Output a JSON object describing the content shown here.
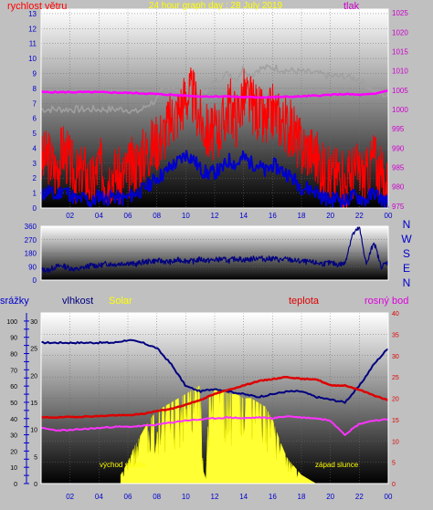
{
  "colors": {
    "background": "#c0c0c0",
    "wind": "#ff0000",
    "wind_avg": "#0000cc",
    "pressure": "#ff00ff",
    "pressure_text": "#cc00cc",
    "temperature_line": "#a0a0a0",
    "direction": "#000080",
    "humidity": "#000080",
    "solar": "#ffff33",
    "teplota": "#dd0000",
    "dew_point": "#ff33ff",
    "title": "#ffff00",
    "rain_axis": "#0000cc"
  },
  "chart_data": [
    {
      "type": "line",
      "title": "24 hour graph day : 28 July 2019",
      "ylabel_left": "rychlost větru",
      "ylabel_right": "tlak",
      "x_ticks": [
        "02",
        "04",
        "06",
        "08",
        "10",
        "12",
        "14",
        "16",
        "18",
        "20",
        "22",
        "00"
      ],
      "y_left_ticks": [
        0,
        1,
        2,
        3,
        4,
        5,
        6,
        7,
        8,
        9,
        10,
        11,
        12,
        13
      ],
      "y_right_ticks": [
        975,
        980,
        985,
        990,
        995,
        1000,
        1005,
        1010,
        1015,
        1020,
        1025
      ],
      "ylim_left": [
        0,
        13.3
      ],
      "ylim_right": [
        974.5,
        1026
      ],
      "series": [
        {
          "role": "wind_max",
          "x": [
            0,
            0.5,
            1,
            1.5,
            2,
            2.5,
            3,
            3.5,
            4,
            4.5,
            5,
            5.5,
            6,
            6.5,
            7,
            7.5,
            8,
            8.5,
            9,
            9.5,
            10,
            10.5,
            11,
            11.5,
            12,
            12.5,
            13,
            13.5,
            14,
            14.5,
            15,
            15.5,
            16,
            16.5,
            17,
            17.5,
            18,
            18.5,
            19,
            19.5,
            20,
            20.5,
            21,
            21.5,
            22,
            22.5,
            23,
            23.5,
            24
          ],
          "values": [
            3,
            3.5,
            2.5,
            4,
            3,
            2,
            2.5,
            1.5,
            3,
            2,
            2.5,
            2,
            2.5,
            3,
            3.5,
            4,
            4.5,
            5,
            6,
            6.5,
            7.5,
            7.5,
            6,
            5,
            5,
            5.5,
            7,
            6,
            7.5,
            7,
            6.5,
            5.5,
            6.5,
            6,
            5.5,
            5,
            4,
            4,
            3.5,
            2.5,
            2,
            2.5,
            1.5,
            2.5,
            2.5,
            2,
            3.5,
            2,
            1.5
          ]
        },
        {
          "role": "wind_avg",
          "x": [
            0,
            0.5,
            1,
            1.5,
            2,
            2.5,
            3,
            3.5,
            4,
            4.5,
            5,
            5.5,
            6,
            6.5,
            7,
            7.5,
            8,
            8.5,
            9,
            9.5,
            10,
            10.5,
            11,
            11.5,
            12,
            12.5,
            13,
            13.5,
            14,
            14.5,
            15,
            15.5,
            16,
            16.5,
            17,
            17.5,
            18,
            18.5,
            19,
            19.5,
            20,
            20.5,
            21,
            21.5,
            22,
            22.5,
            23,
            23.5,
            24
          ],
          "values": [
            0.8,
            1.2,
            0.7,
            1.3,
            0.9,
            0.5,
            0.7,
            0.3,
            0.9,
            0.6,
            0.8,
            0.6,
            0.7,
            1,
            1.2,
            1.6,
            2,
            2.3,
            2.8,
            3.1,
            3.6,
            3.3,
            2.6,
            2.3,
            2.4,
            2.6,
            3.2,
            2.9,
            3.4,
            3,
            2.9,
            2.4,
            2.9,
            2.6,
            2.3,
            1.9,
            1.4,
            1.3,
            1.1,
            0.7,
            0.5,
            0.7,
            0.4,
            0.8,
            0.7,
            0.5,
            1.1,
            0.6,
            0.4
          ]
        },
        {
          "role": "pressure",
          "x": [
            0,
            1,
            2,
            3,
            4,
            5,
            6,
            7,
            8,
            9,
            10,
            11,
            12,
            13,
            14,
            15,
            16,
            17,
            18,
            19,
            20,
            21,
            22,
            23,
            24
          ],
          "values": [
            1004.5,
            1004.5,
            1004.5,
            1004.5,
            1004.5,
            1004.4,
            1004.3,
            1004.2,
            1004,
            1003.8,
            1003.6,
            1003.4,
            1003.4,
            1003.4,
            1003.2,
            1003.2,
            1003.2,
            1003.3,
            1003.4,
            1003.6,
            1003.8,
            1004,
            1003.8,
            1004,
            1005
          ]
        },
        {
          "role": "temperature_grey",
          "x": [
            0,
            1,
            2,
            3,
            4,
            5,
            6,
            6.5,
            7,
            7.5,
            8,
            8.5,
            9,
            9.5,
            10,
            10.5,
            11,
            11.5,
            12,
            12.5,
            13,
            13.5,
            14,
            14.5,
            15,
            16,
            17,
            18,
            19,
            20,
            21,
            22,
            23,
            24
          ],
          "values": [
            6.6,
            6.6,
            6.6,
            6.6,
            6.6,
            6.6,
            6.6,
            6.4,
            6.6,
            7,
            7.2,
            8,
            8.3,
            7.6,
            8.6,
            8.2,
            7.8,
            8,
            8.4,
            8.8,
            9,
            8.6,
            9.4,
            8.8,
            9.3,
            9.4,
            9.2,
            9.1,
            9,
            8.8,
            8.8,
            8.6,
            7.8,
            7.5
          ]
        }
      ]
    },
    {
      "type": "line",
      "title": "",
      "ylabel_right_letters": [
        "N",
        "W",
        "S",
        "E",
        "N"
      ],
      "y_ticks": [
        0,
        90,
        180,
        270,
        360
      ],
      "ylim": [
        0,
        360
      ],
      "series": [
        {
          "role": "direction",
          "x": [
            0,
            0.5,
            1,
            1.5,
            2,
            2.5,
            3,
            3.5,
            4,
            4.5,
            5,
            5.5,
            6,
            6.5,
            7,
            7.5,
            8,
            8.5,
            9,
            9.5,
            10,
            10.5,
            11,
            11.5,
            12,
            12.5,
            13,
            13.5,
            14,
            14.5,
            15,
            15.5,
            16,
            16.5,
            17,
            17.5,
            18,
            18.5,
            19,
            19.5,
            20,
            20.5,
            21,
            21.5,
            22,
            22.5,
            23,
            23.5,
            24
          ],
          "values": [
            70,
            65,
            90,
            95,
            80,
            70,
            85,
            100,
            95,
            110,
            105,
            110,
            115,
            105,
            120,
            125,
            130,
            125,
            120,
            135,
            130,
            125,
            140,
            130,
            135,
            140,
            130,
            145,
            135,
            140,
            150,
            140,
            145,
            135,
            140,
            130,
            125,
            120,
            115,
            110,
            115,
            105,
            110,
            300,
            350,
            100,
            260,
            90,
            120
          ]
        }
      ]
    },
    {
      "type": "line",
      "title": "",
      "ylabel_left_1": "srážky",
      "ylabel_left_2": "vlhkost",
      "series_label_solar": "Solar",
      "series_label_temp": "teplota",
      "series_label_dew": "rosný bod",
      "annotation_sunrise": "východ slunce",
      "annotation_sunset": "západ slunce",
      "x_ticks": [
        "02",
        "04",
        "06",
        "08",
        "10",
        "12",
        "14",
        "16",
        "18",
        "20",
        "22",
        "00"
      ],
      "rain_ticks": [
        0,
        10,
        20,
        30,
        40,
        50,
        60,
        70,
        80,
        90,
        100
      ],
      "humidity_ticks": [
        0,
        5,
        10,
        15,
        20,
        25,
        30
      ],
      "temp_ticks": [
        0,
        5,
        10,
        15,
        20,
        25,
        30,
        35,
        40
      ],
      "series": [
        {
          "role": "humidity",
          "x": [
            0,
            1,
            2,
            3,
            4,
            5,
            6,
            7,
            8,
            9,
            10,
            11,
            12,
            13,
            14,
            15,
            16,
            17,
            18,
            19,
            20,
            21,
            22,
            23,
            24
          ],
          "values": [
            26,
            26,
            26,
            26,
            26,
            26,
            26.5,
            26,
            25,
            22,
            18,
            17,
            17.5,
            17,
            16.5,
            16,
            16.5,
            17,
            17,
            16,
            15.5,
            15,
            18,
            22,
            25
          ]
        },
        {
          "role": "temperature",
          "x": [
            0,
            1,
            2,
            3,
            4,
            5,
            6,
            7,
            8,
            9,
            10,
            11,
            12,
            13,
            14,
            15,
            16,
            17,
            18,
            19,
            20,
            21,
            22,
            23,
            24
          ],
          "values": [
            15.5,
            15.5,
            15.6,
            15.7,
            15.8,
            16,
            16,
            16.3,
            17,
            17.5,
            18.5,
            19.6,
            21,
            22,
            23,
            24,
            24.5,
            25,
            24.5,
            24.5,
            23,
            23,
            22,
            20.7,
            19.5
          ]
        },
        {
          "role": "dew_point",
          "x": [
            0,
            1,
            2,
            3,
            4,
            5,
            6,
            7,
            8,
            9,
            10,
            11,
            12,
            13,
            14,
            15,
            16,
            17,
            18,
            19,
            20,
            21,
            22,
            23,
            24
          ],
          "values": [
            13,
            12.5,
            12.5,
            12.8,
            13,
            13.3,
            13.3,
            13.5,
            13.8,
            14.3,
            14.8,
            15,
            15.3,
            15.5,
            15.3,
            15.5,
            15.3,
            15.8,
            15.5,
            15.3,
            14.8,
            11.5,
            14,
            14.8,
            15
          ]
        },
        {
          "role": "solar",
          "x": [
            5.5,
            6.0,
            6.5,
            7.0,
            7.5,
            8.0,
            8.5,
            9.0,
            9.5,
            10.0,
            10.5,
            11.0,
            11.2,
            11.4,
            11.6,
            12.0,
            12.5,
            13.0,
            13.5,
            14.0,
            14.5,
            15.0,
            15.5,
            16.0,
            16.5,
            17.0,
            17.5,
            18.0,
            18.5,
            19.0
          ],
          "values": [
            2,
            5,
            9,
            12,
            15,
            17,
            18,
            19,
            20,
            21,
            22,
            23,
            3,
            1,
            20,
            22,
            22,
            21,
            21,
            20,
            20,
            19,
            18,
            15,
            10,
            6,
            4,
            2,
            1,
            0
          ]
        }
      ]
    }
  ]
}
